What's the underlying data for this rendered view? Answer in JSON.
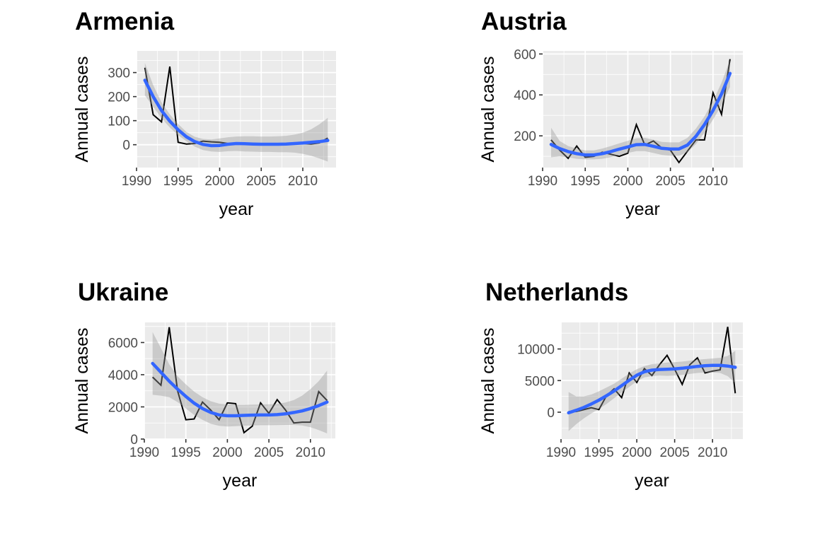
{
  "chart_data": [
    {
      "type": "line",
      "title": "Armenia",
      "xlabel": "year",
      "ylabel": "Annual cases",
      "xlim": [
        1990,
        2014
      ],
      "ylim": [
        -95,
        390
      ],
      "xticks": [
        1990,
        1995,
        2000,
        2005,
        2010
      ],
      "yticks": [
        0,
        100,
        200,
        300
      ],
      "grid": true,
      "series": [
        {
          "role": "observed",
          "x": [
            1991,
            1992,
            1993,
            1994,
            1995,
            1996,
            1997,
            1998,
            1999,
            2000,
            2001,
            2002,
            2003,
            2004,
            2005,
            2006,
            2007,
            2008,
            2009,
            2010,
            2011,
            2012,
            2013
          ],
          "values": [
            320,
            125,
            95,
            325,
            10,
            3,
            5,
            15,
            12,
            10,
            5,
            3,
            2,
            2,
            1,
            2,
            3,
            5,
            8,
            5,
            3,
            8,
            28
          ]
        },
        {
          "role": "smooth",
          "x": [
            1991,
            1992,
            1993,
            1994,
            1995,
            1996,
            1997,
            1998,
            1999,
            2000,
            2001,
            2002,
            2003,
            2004,
            2005,
            2006,
            2007,
            2008,
            2009,
            2010,
            2011,
            2012,
            2013
          ],
          "values": [
            268,
            200,
            142,
            98,
            62,
            33,
            13,
            1,
            -4,
            -3,
            2,
            5,
            4,
            3,
            2,
            2,
            2,
            3,
            5,
            7,
            10,
            13,
            18
          ],
          "lower": [
            205,
            158,
            110,
            72,
            40,
            14,
            -8,
            -22,
            -28,
            -30,
            -27,
            -26,
            -28,
            -29,
            -30,
            -30,
            -31,
            -31,
            -33,
            -38,
            -46,
            -57,
            -70
          ],
          "upper": [
            340,
            248,
            176,
            126,
            86,
            53,
            33,
            24,
            22,
            26,
            31,
            34,
            35,
            35,
            34,
            34,
            35,
            37,
            42,
            50,
            64,
            85,
            112
          ]
        }
      ]
    },
    {
      "type": "line",
      "title": "Austria",
      "xlabel": "year",
      "ylabel": "Annual cases",
      "xlim": [
        1990,
        2013.5
      ],
      "ylim": [
        45,
        615
      ],
      "xticks": [
        1990,
        1995,
        2000,
        2005,
        2010
      ],
      "yticks": [
        200,
        400,
        600
      ],
      "grid": true,
      "series": [
        {
          "role": "observed",
          "x": [
            1991,
            1992,
            1993,
            1994,
            1995,
            1996,
            1997,
            1998,
            1999,
            2000,
            2001,
            2002,
            2003,
            2004,
            2005,
            2006,
            2007,
            2008,
            2009,
            2010,
            2011,
            2012,
            2013
          ],
          "values": [
            180,
            130,
            90,
            150,
            95,
            100,
            120,
            110,
            100,
            115,
            255,
            155,
            175,
            140,
            130,
            70,
            125,
            180,
            180,
            410,
            305,
            575,
            null
          ]
        },
        {
          "role": "smooth",
          "x": [
            1991,
            1992,
            1993,
            1994,
            1995,
            1996,
            1997,
            1998,
            1999,
            2000,
            2001,
            2002,
            2003,
            2004,
            2005,
            2006,
            2007,
            2008,
            2009,
            2010,
            2011,
            2012
          ],
          "values": [
            158,
            138,
            123,
            113,
            107,
            107,
            113,
            123,
            135,
            146,
            157,
            158,
            149,
            139,
            136,
            136,
            155,
            198,
            255,
            324,
            405,
            505
          ],
          "lower": [
            95,
            100,
            95,
            88,
            85,
            85,
            88,
            96,
            106,
            116,
            125,
            125,
            116,
            107,
            103,
            103,
            120,
            160,
            215,
            280,
            350,
            440
          ],
          "upper": [
            240,
            175,
            150,
            138,
            129,
            129,
            138,
            150,
            163,
            176,
            188,
            190,
            181,
            170,
            168,
            168,
            190,
            236,
            295,
            370,
            460,
            570
          ]
        }
      ]
    },
    {
      "type": "line",
      "title": "Ukraine",
      "xlabel": "year",
      "ylabel": "Annual cases",
      "xlim": [
        1990,
        2013
      ],
      "ylim": [
        0,
        7250
      ],
      "xticks": [
        1990,
        1995,
        2000,
        2005,
        2010
      ],
      "yticks": [
        0,
        2000,
        4000,
        6000
      ],
      "grid": true,
      "series": [
        {
          "role": "observed",
          "x": [
            1991,
            1992,
            1993,
            1994,
            1995,
            1996,
            1997,
            1998,
            1999,
            2000,
            2001,
            2002,
            2003,
            2004,
            2005,
            2006,
            2007,
            2008,
            2009,
            2010,
            2011,
            2012
          ],
          "values": [
            3850,
            3350,
            6950,
            3000,
            1200,
            1250,
            2300,
            1800,
            1200,
            2250,
            2200,
            400,
            800,
            2250,
            1600,
            2450,
            1800,
            1000,
            1050,
            1050,
            2950,
            2400
          ]
        },
        {
          "role": "smooth",
          "x": [
            1991,
            1992,
            1993,
            1994,
            1995,
            1996,
            1997,
            1998,
            1999,
            2000,
            2001,
            2002,
            2003,
            2004,
            2005,
            2006,
            2007,
            2008,
            2009,
            2010,
            2011,
            2012
          ],
          "values": [
            4700,
            4150,
            3600,
            3100,
            2650,
            2230,
            1900,
            1650,
            1500,
            1450,
            1450,
            1470,
            1490,
            1500,
            1500,
            1520,
            1570,
            1650,
            1750,
            1900,
            2080,
            2300
          ],
          "lower": [
            2750,
            2700,
            2600,
            2300,
            1900,
            1500,
            1200,
            950,
            820,
            780,
            800,
            830,
            850,
            860,
            860,
            870,
            880,
            880,
            850,
            740,
            560,
            350
          ],
          "upper": [
            6650,
            5650,
            4650,
            3900,
            3400,
            2950,
            2600,
            2350,
            2200,
            2150,
            2120,
            2120,
            2140,
            2150,
            2160,
            2190,
            2270,
            2420,
            2700,
            3100,
            3600,
            4250
          ]
        }
      ]
    },
    {
      "type": "line",
      "title": "Netherlands",
      "xlabel": "year",
      "ylabel": "Annual cases",
      "xlim": [
        1990,
        2014
      ],
      "ylim": [
        -4250,
        14200
      ],
      "xticks": [
        1990,
        1995,
        2000,
        2005,
        2010
      ],
      "yticks": [
        0,
        5000,
        10000
      ],
      "grid": true,
      "series": [
        {
          "role": "observed",
          "x": [
            1991,
            1992,
            1993,
            1994,
            1995,
            1996,
            1997,
            1998,
            1999,
            2000,
            2001,
            2002,
            2003,
            2004,
            2005,
            2006,
            2007,
            2008,
            2009,
            2010,
            2011,
            2012,
            2013
          ],
          "values": [
            100,
            100,
            400,
            700,
            400,
            2600,
            3700,
            2300,
            6200,
            4700,
            6900,
            5800,
            7500,
            9000,
            6800,
            4400,
            7500,
            8600,
            6200,
            6500,
            6700,
            13500,
            3000
          ]
        },
        {
          "role": "smooth",
          "x": [
            1991,
            1992,
            1993,
            1994,
            1995,
            1996,
            1997,
            1998,
            1999,
            2000,
            2001,
            2002,
            2003,
            2004,
            2005,
            2006,
            2007,
            2008,
            2009,
            2010,
            2011,
            2012,
            2013
          ],
          "values": [
            -100,
            300,
            750,
            1300,
            1900,
            2600,
            3350,
            4200,
            5050,
            5850,
            6400,
            6650,
            6750,
            6800,
            6850,
            6950,
            7100,
            7250,
            7350,
            7400,
            7400,
            7300,
            7100
          ],
          "lower": [
            -3000,
            -1900,
            -1000,
            -200,
            500,
            1300,
            2200,
            3100,
            4000,
            4900,
            5500,
            5700,
            5800,
            5750,
            5800,
            5900,
            6050,
            6200,
            6300,
            6300,
            6200,
            5700,
            4600
          ],
          "upper": [
            3200,
            2500,
            2500,
            2800,
            3300,
            3900,
            4500,
            5300,
            6100,
            6800,
            7300,
            7600,
            7700,
            7850,
            7900,
            8000,
            8150,
            8300,
            8400,
            8500,
            8600,
            8900,
            9700
          ]
        }
      ]
    }
  ]
}
